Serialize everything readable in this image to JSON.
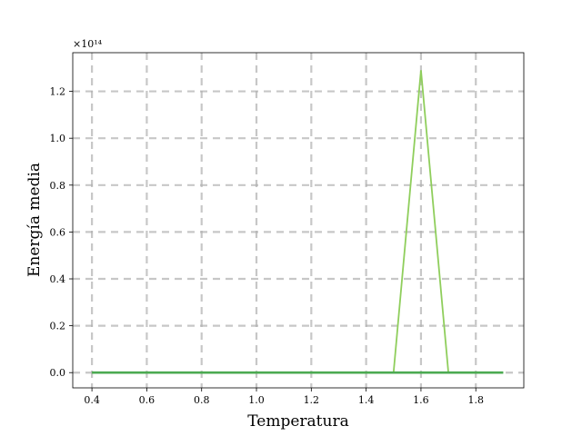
{
  "chart_data": {
    "type": "line",
    "title": "",
    "xlabel": "Temperatura",
    "ylabel": "Energía media",
    "y_offset_label": "×10¹⁴",
    "y_scale_factor": 100000000000000.0,
    "xlim": [
      0.33,
      1.975
    ],
    "ylim": [
      -0.065,
      1.365
    ],
    "xticks": [
      0.4,
      0.6,
      0.8,
      1.0,
      1.2,
      1.4,
      1.6,
      1.8
    ],
    "xtick_labels": [
      "0.4",
      "0.6",
      "0.8",
      "1.0",
      "1.2",
      "1.4",
      "1.6",
      "1.8"
    ],
    "yticks": [
      0.0,
      0.2,
      0.4,
      0.6,
      0.8,
      1.0,
      1.2
    ],
    "ytick_labels": [
      "0.0",
      "0.2",
      "0.4",
      "0.6",
      "0.8",
      "1.0",
      "1.2"
    ],
    "grid": true,
    "legend": "none",
    "series": [
      {
        "color": "#8fce5c",
        "x": [
          0.4,
          0.5,
          0.6,
          0.7,
          0.8,
          0.9,
          1.0,
          1.1,
          1.2,
          1.3,
          1.4,
          1.5,
          1.6,
          1.7,
          1.8,
          1.9
        ],
        "y": [
          0,
          0,
          0,
          0,
          0,
          0,
          0,
          0,
          0,
          0,
          0,
          0,
          1.29,
          0,
          0,
          0
        ]
      },
      {
        "color": "#4caa52",
        "x": [
          0.4,
          0.5,
          0.6,
          0.7,
          0.8,
          0.9,
          1.0,
          1.1,
          1.2,
          1.3,
          1.4,
          1.5,
          1.6,
          1.7,
          1.8,
          1.9
        ],
        "y": [
          0,
          0,
          0,
          0,
          0,
          0,
          0,
          0,
          0,
          0,
          0,
          0,
          0,
          0,
          0,
          0
        ]
      }
    ]
  }
}
